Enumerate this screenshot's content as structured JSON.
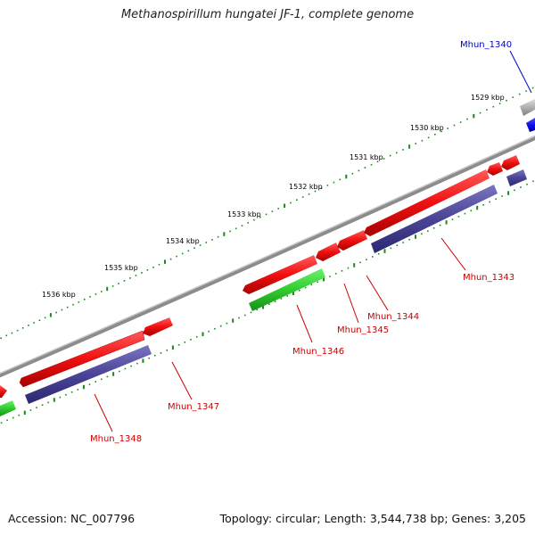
{
  "title": "Methanospirillum hungatei JF-1, complete genome",
  "footer": {
    "accession": "Accession: NC_007796",
    "stats": "Topology: circular; Length: 3,544,738 bp; Genes: 3,205"
  },
  "colors": {
    "backbone": "#8c8c8c",
    "tick": "#1a8a1a",
    "feature_red": "#f01010",
    "feature_purple": "#4a4496",
    "feature_green": "#2ecc2e",
    "feature_blue": "#1010f0",
    "feature_gray": "#b0b0b0",
    "label_red": "#cc0000",
    "label_blue": "#0000cc"
  },
  "scale_labels": [
    "1529 kbp",
    "1530 kbp",
    "1531 kbp",
    "1532 kbp",
    "1533 kbp",
    "1534 kbp",
    "1535 kbp",
    "1536 kbp"
  ],
  "gene_labels": [
    "Mhun_1340",
    "Mhun_1343",
    "Mhun_1344",
    "Mhun_1345",
    "Mhun_1346",
    "Mhun_1347",
    "Mhun_1348"
  ]
}
